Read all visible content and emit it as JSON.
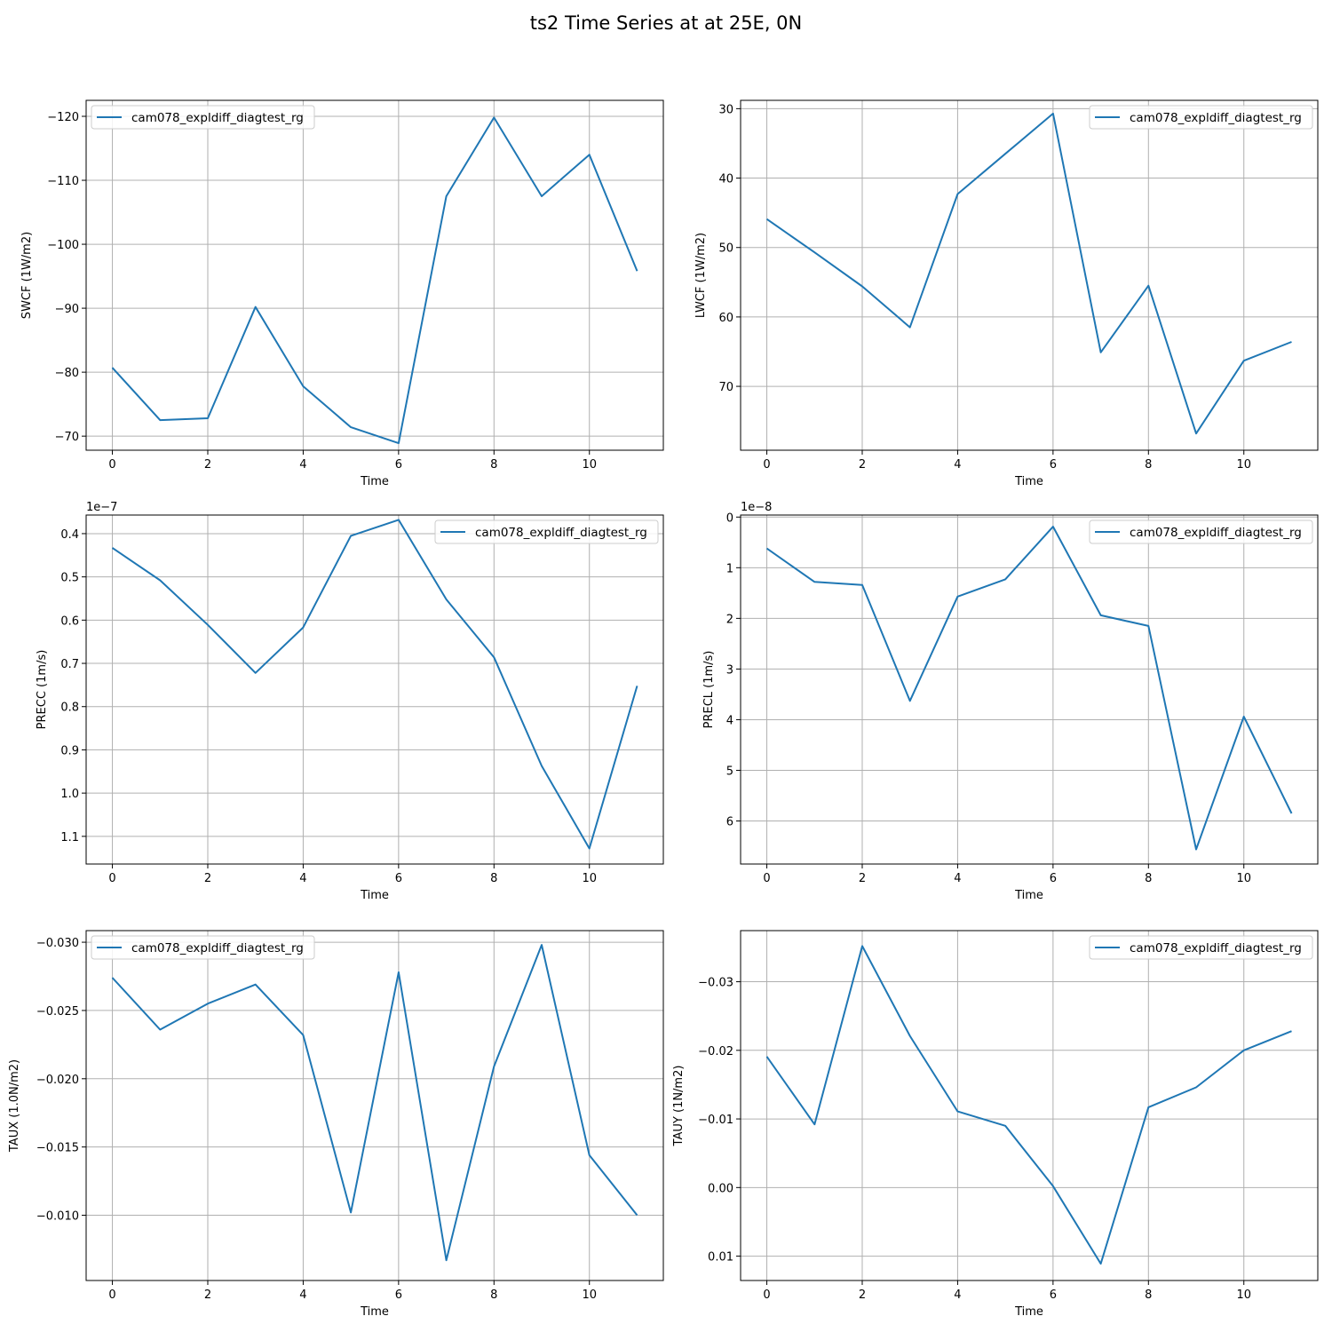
{
  "title": "ts2 Time Series at at 25E, 0N",
  "colors": {
    "line": "#1f77b4",
    "grid": "#b0b0b0",
    "frame": "#000000"
  },
  "chart_data": [
    {
      "type": "line",
      "xlabel": "Time",
      "ylabel": "SWCF (1W/m2)",
      "y_inverted": true,
      "grid": true,
      "legend_position": "top-left",
      "offset_text": "",
      "xlim": [
        -0.55,
        11.55
      ],
      "ylim": [
        -67.8,
        -122.5
      ],
      "xticks": [
        0,
        2,
        4,
        6,
        8,
        10
      ],
      "xtick_labels": [
        "0",
        "2",
        "4",
        "6",
        "8",
        "10"
      ],
      "yticks": [
        -120,
        -110,
        -100,
        -90,
        -80,
        -70
      ],
      "ytick_labels": [
        "−120",
        "−110",
        "−100",
        "−90",
        "−80",
        "−70"
      ],
      "series": [
        {
          "name": "cam078_expldiff_diagtest_rg",
          "x": [
            0,
            1,
            2,
            3,
            4,
            5,
            6,
            7,
            8,
            9,
            10,
            11
          ],
          "y": [
            -80.7,
            -72.5,
            -72.8,
            -90.2,
            -77.8,
            -71.4,
            -68.9,
            -107.5,
            -119.8,
            -107.5,
            -114.0,
            -95.8
          ]
        }
      ]
    },
    {
      "type": "line",
      "xlabel": "Time",
      "ylabel": "LWCF (1W/m2)",
      "y_inverted": true,
      "grid": true,
      "legend_position": "top-right",
      "offset_text": "",
      "xlim": [
        -0.55,
        11.55
      ],
      "ylim": [
        79.2,
        28.8
      ],
      "xticks": [
        0,
        2,
        4,
        6,
        8,
        10
      ],
      "xtick_labels": [
        "0",
        "2",
        "4",
        "6",
        "8",
        "10"
      ],
      "yticks": [
        30,
        40,
        50,
        60,
        70
      ],
      "ytick_labels": [
        "30",
        "40",
        "50",
        "60",
        "70"
      ],
      "series": [
        {
          "name": "cam078_expldiff_diagtest_rg",
          "x": [
            0,
            1,
            2,
            3,
            4,
            5,
            6,
            7,
            8,
            9,
            10,
            11
          ],
          "y": [
            45.9,
            50.7,
            55.6,
            61.5,
            42.3,
            36.5,
            30.7,
            65.1,
            55.5,
            76.8,
            66.3,
            63.6
          ]
        }
      ]
    },
    {
      "type": "line",
      "xlabel": "Time",
      "ylabel": "PRECC (1m/s)",
      "y_inverted": true,
      "grid": true,
      "legend_position": "top-right",
      "offset_text": "1e−7",
      "xlim": [
        -0.55,
        11.55
      ],
      "ylim": [
        1.164,
        0.357
      ],
      "xticks": [
        0,
        2,
        4,
        6,
        8,
        10
      ],
      "xtick_labels": [
        "0",
        "2",
        "4",
        "6",
        "8",
        "10"
      ],
      "yticks": [
        0.4,
        0.5,
        0.6,
        0.7,
        0.8,
        0.9,
        1.0,
        1.1
      ],
      "ytick_labels": [
        "0.4",
        "0.5",
        "0.6",
        "0.7",
        "0.8",
        "0.9",
        "1.0",
        "1.1"
      ],
      "series": [
        {
          "name": "cam078_expldiff_diagtest_rg",
          "x": [
            0,
            1,
            2,
            3,
            4,
            5,
            6,
            7,
            8,
            9,
            10,
            11
          ],
          "y": [
            0.433,
            0.508,
            0.611,
            0.722,
            0.617,
            0.405,
            0.368,
            0.552,
            0.686,
            0.937,
            1.128,
            0.752
          ]
        }
      ]
    },
    {
      "type": "line",
      "xlabel": "Time",
      "ylabel": "PRECL (1m/s)",
      "y_inverted": true,
      "grid": true,
      "legend_position": "top-right",
      "offset_text": "1e−8",
      "xlim": [
        -0.55,
        11.55
      ],
      "ylim": [
        6.85,
        -0.04
      ],
      "xticks": [
        0,
        2,
        4,
        6,
        8,
        10
      ],
      "xtick_labels": [
        "0",
        "2",
        "4",
        "6",
        "8",
        "10"
      ],
      "yticks": [
        0,
        1,
        2,
        3,
        4,
        5,
        6
      ],
      "ytick_labels": [
        "0",
        "1",
        "2",
        "3",
        "4",
        "5",
        "6"
      ],
      "series": [
        {
          "name": "cam078_expldiff_diagtest_rg",
          "x": [
            0,
            1,
            2,
            3,
            4,
            5,
            6,
            7,
            8,
            9,
            10,
            11
          ],
          "y": [
            0.62,
            1.28,
            1.34,
            3.63,
            1.57,
            1.23,
            0.19,
            1.94,
            2.15,
            6.56,
            3.94,
            5.85
          ]
        }
      ]
    },
    {
      "type": "line",
      "xlabel": "Time",
      "ylabel": "TAUX (1.0N/m2)",
      "y_inverted": true,
      "grid": true,
      "legend_position": "top-left",
      "offset_text": "",
      "xlim": [
        -0.55,
        11.55
      ],
      "ylim": [
        -0.00522,
        -0.03085
      ],
      "xticks": [
        0,
        2,
        4,
        6,
        8,
        10
      ],
      "xtick_labels": [
        "0",
        "2",
        "4",
        "6",
        "8",
        "10"
      ],
      "yticks": [
        -0.03,
        -0.025,
        -0.02,
        -0.015,
        -0.01
      ],
      "ytick_labels": [
        "−0.030",
        "−0.025",
        "−0.020",
        "−0.015",
        "−0.010"
      ],
      "series": [
        {
          "name": "cam078_expldiff_diagtest_rg",
          "x": [
            0,
            1,
            2,
            3,
            4,
            5,
            6,
            7,
            8,
            9,
            10,
            11
          ],
          "y": [
            -0.0274,
            -0.0236,
            -0.0255,
            -0.0269,
            -0.0232,
            -0.0102,
            -0.0278,
            -0.0067,
            -0.0209,
            -0.0298,
            -0.0144,
            -0.01
          ]
        }
      ]
    },
    {
      "type": "line",
      "xlabel": "Time",
      "ylabel": "TAUY (1N/m2)",
      "y_inverted": true,
      "grid": true,
      "legend_position": "top-right",
      "offset_text": "",
      "xlim": [
        -0.55,
        11.55
      ],
      "ylim": [
        0.01355,
        -0.03745
      ],
      "xticks": [
        0,
        2,
        4,
        6,
        8,
        10
      ],
      "xtick_labels": [
        "0",
        "2",
        "4",
        "6",
        "8",
        "10"
      ],
      "yticks": [
        -0.03,
        -0.02,
        -0.01,
        0.0,
        0.01
      ],
      "ytick_labels": [
        "−0.03",
        "−0.02",
        "−0.01",
        "0.00",
        "0.01"
      ],
      "series": [
        {
          "name": "cam078_expldiff_diagtest_rg",
          "x": [
            0,
            1,
            2,
            3,
            4,
            5,
            6,
            7,
            8,
            9,
            10,
            11
          ],
          "y": [
            -0.0191,
            -0.0092,
            -0.0352,
            -0.0221,
            -0.0111,
            -0.009,
            -0.0002,
            0.0111,
            -0.0117,
            -0.0146,
            -0.02,
            -0.0228
          ]
        }
      ]
    }
  ]
}
